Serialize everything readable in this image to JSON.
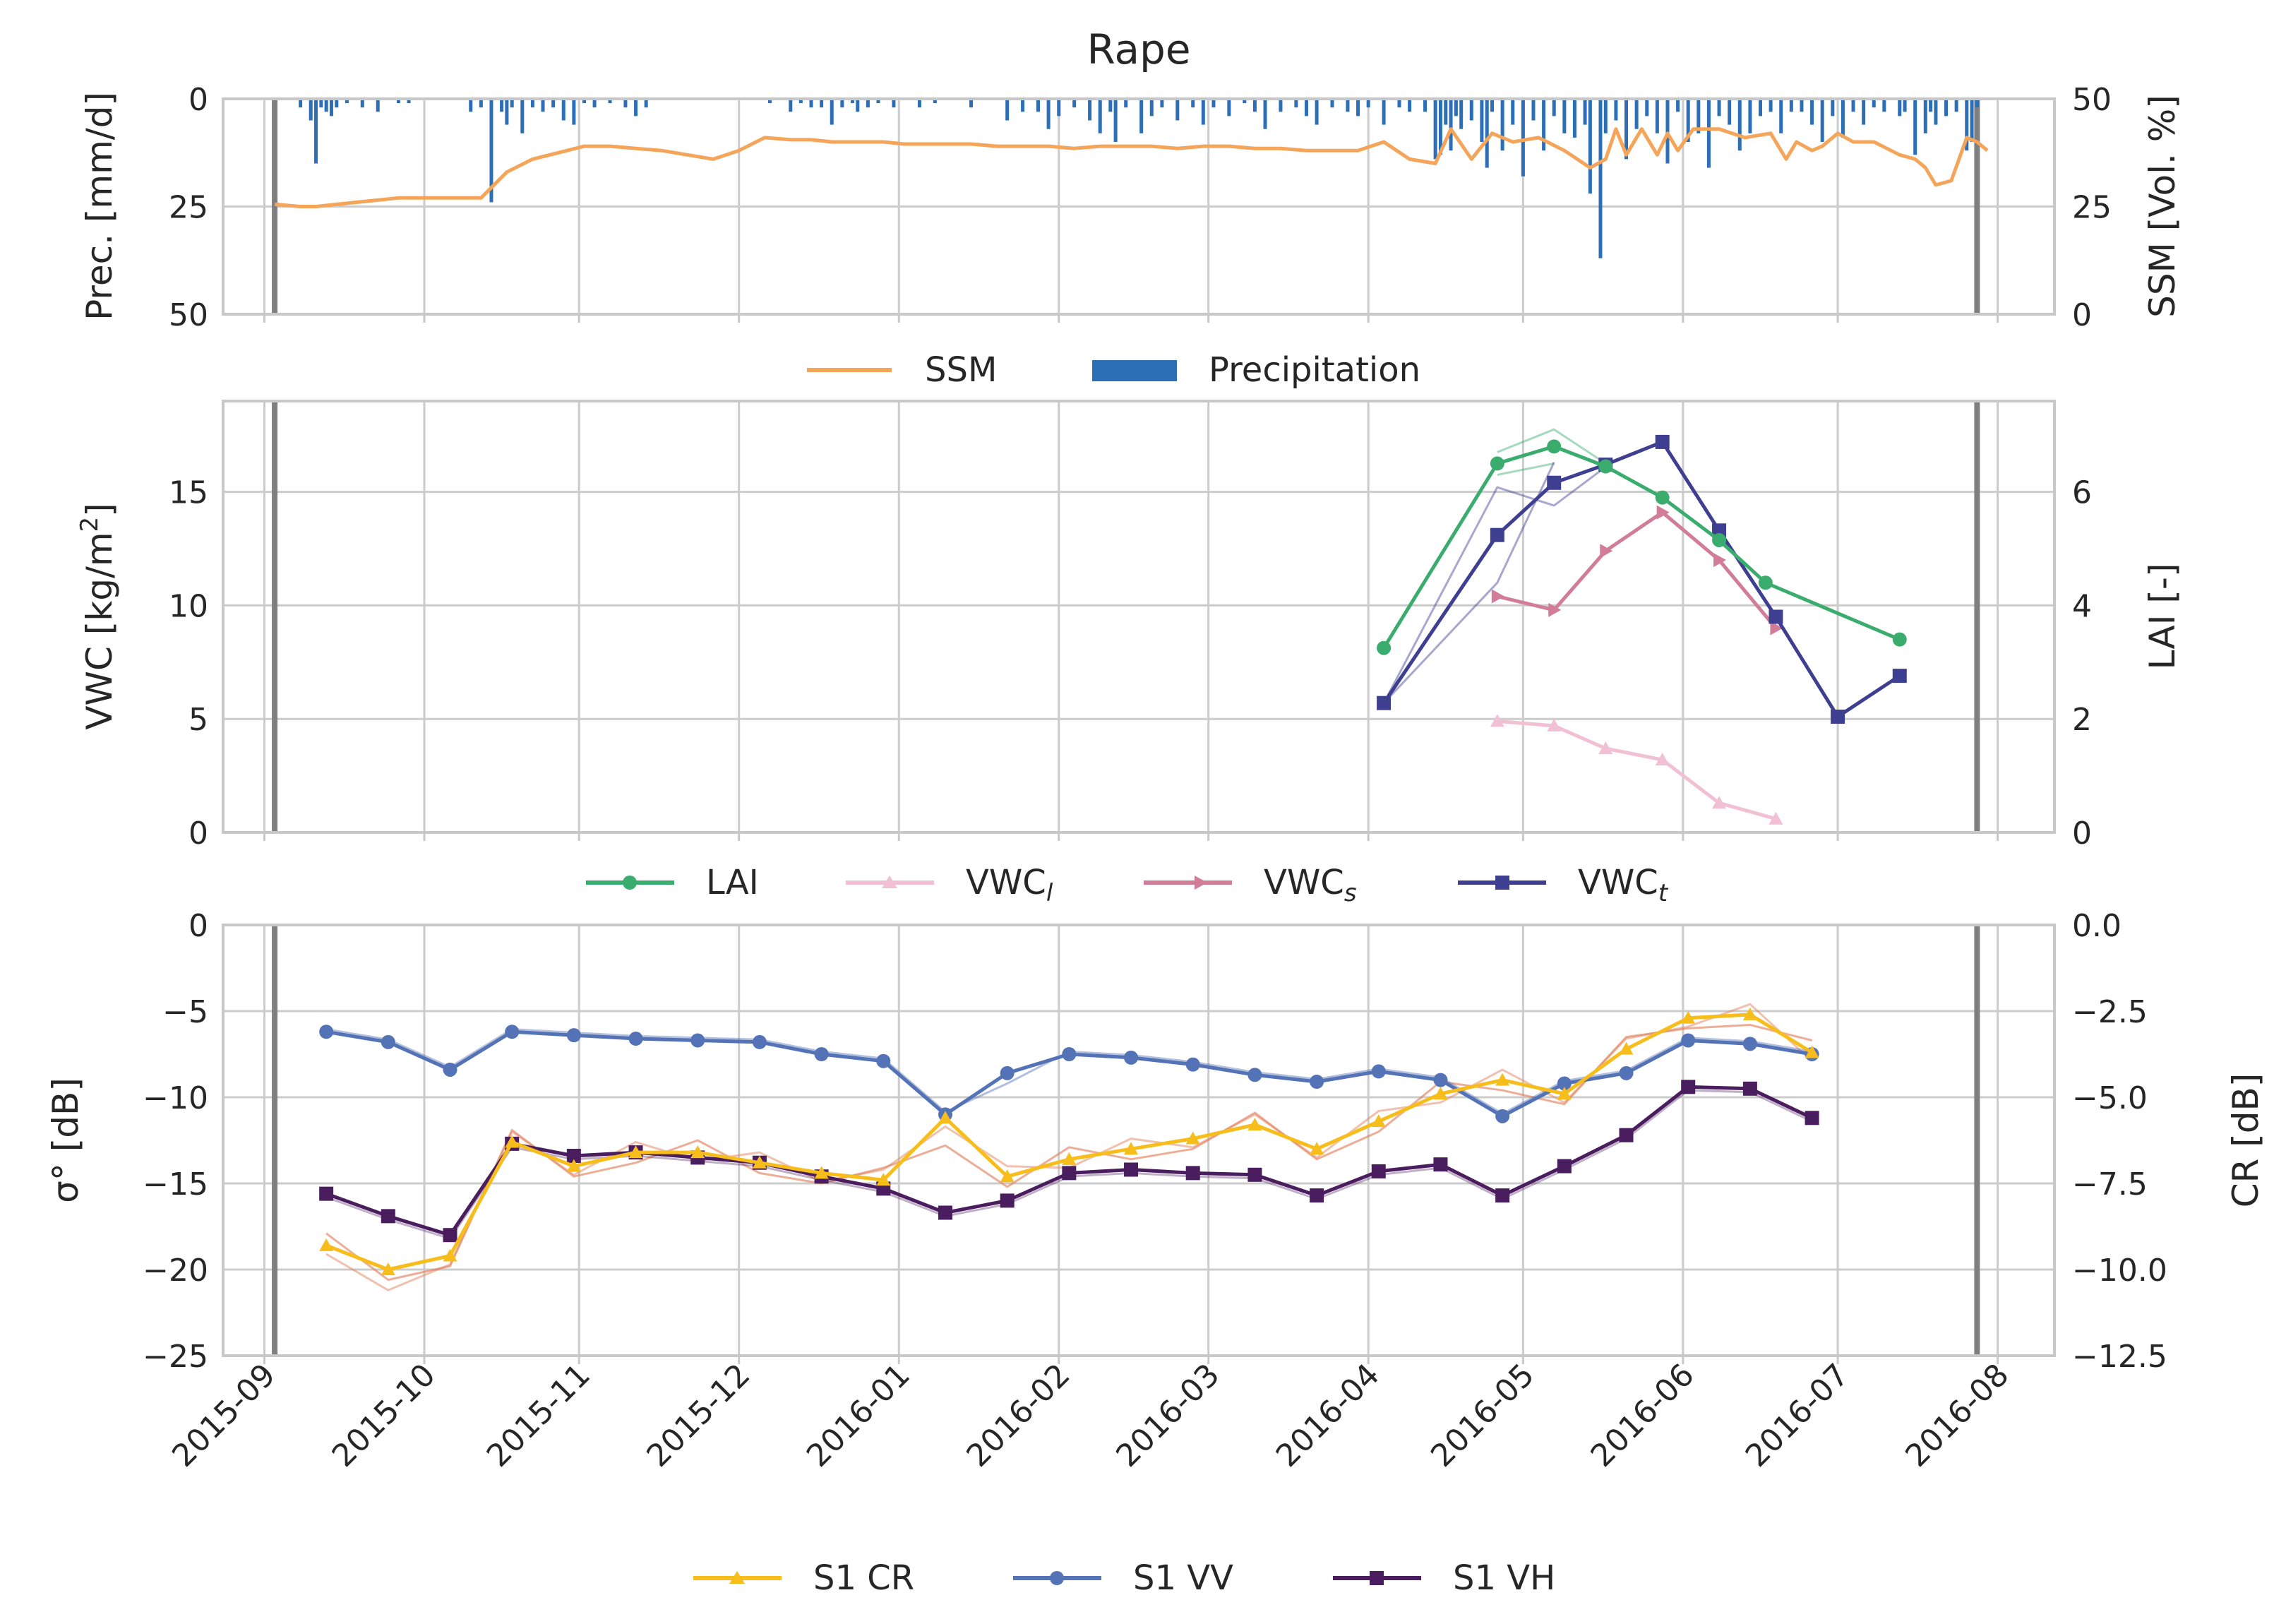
{
  "chart_data": [
    {
      "type": "line",
      "title": "Rape",
      "ylabel": "Prec. [mm/d]",
      "ylabel_right": "SSM [Vol. %]",
      "ylim": [
        50,
        0
      ],
      "ylim_right": [
        0,
        50
      ],
      "yticks": [
        "0",
        "25",
        "50"
      ],
      "yticks_right": [
        "50",
        "25",
        "0"
      ],
      "x_range_days": [
        -10,
        345
      ],
      "vertical_markers_days": [
        0,
        330
      ],
      "legend": [
        "SSM",
        "Precipitation"
      ],
      "colors": {
        "ssm": "#f5a55a",
        "precip": "#2c6fb6"
      },
      "ssm": {
        "x": [
          0,
          5,
          8,
          12,
          16,
          20,
          24,
          28,
          32,
          36,
          40,
          45,
          50,
          55,
          60,
          65,
          70,
          75,
          80,
          85,
          90,
          95,
          100,
          104,
          108,
          112,
          115,
          118,
          122,
          126,
          130,
          135,
          140,
          145,
          150,
          155,
          160,
          165,
          170,
          175,
          180,
          185,
          190,
          195,
          200,
          205,
          210,
          215,
          220,
          225,
          228,
          232,
          236,
          240,
          245,
          250,
          255,
          258,
          260,
          262,
          265,
          268,
          270,
          272,
          275,
          280,
          285,
          290,
          293,
          295,
          298,
          300,
          303,
          306,
          310,
          315,
          318,
          320,
          322,
          325,
          328,
          330,
          332
        ],
        "values": [
          25.5,
          25,
          25,
          25.5,
          26,
          26.5,
          27,
          27,
          27,
          27,
          27,
          33,
          36,
          37.5,
          39,
          39,
          38.5,
          38,
          37,
          36,
          38,
          41,
          40.5,
          40.5,
          40,
          40,
          40,
          40,
          39.5,
          39.5,
          39.5,
          39.5,
          39,
          39,
          39,
          38.5,
          39,
          39,
          39,
          38.5,
          39,
          39,
          38.5,
          38.5,
          38,
          38,
          38,
          40,
          36,
          35,
          43,
          36,
          42,
          40,
          41,
          38,
          34,
          36,
          43,
          37,
          43,
          37,
          42,
          38,
          43,
          43,
          41,
          42,
          36,
          40,
          38,
          39,
          42,
          40,
          40,
          37,
          36,
          34,
          30,
          31,
          41,
          40,
          38
        ]
      },
      "precipitation": {
        "x": [
          5,
          7,
          8,
          9,
          10,
          11,
          12,
          14,
          17,
          20,
          24,
          26,
          38,
          40,
          42,
          44,
          45,
          46,
          48,
          50,
          52,
          54,
          56,
          58,
          60,
          62,
          65,
          68,
          70,
          72,
          96,
          100,
          102,
          104,
          106,
          108,
          110,
          112,
          113,
          115,
          117,
          120,
          125,
          128,
          135,
          142,
          145,
          148,
          150,
          152,
          155,
          158,
          160,
          162,
          163,
          165,
          168,
          170,
          172,
          175,
          178,
          180,
          182,
          185,
          188,
          190,
          192,
          195,
          198,
          200,
          202,
          205,
          208,
          210,
          212,
          215,
          218,
          220,
          223,
          225,
          226,
          227,
          228,
          229,
          230,
          232,
          234,
          235,
          236,
          238,
          240,
          242,
          244,
          246,
          248,
          250,
          252,
          254,
          255,
          257,
          258,
          260,
          262,
          264,
          266,
          268,
          270,
          272,
          274,
          276,
          278,
          280,
          282,
          284,
          286,
          288,
          290,
          292,
          294,
          296,
          298,
          300,
          302,
          304,
          306,
          308,
          310,
          312,
          315,
          316,
          318,
          320,
          321,
          322,
          324,
          326,
          328,
          329,
          330
        ],
        "values": [
          2,
          5,
          15,
          2,
          3,
          4,
          2,
          1,
          2,
          3,
          1,
          1,
          3,
          2,
          24,
          3,
          6,
          2,
          8,
          2,
          3,
          2,
          5,
          6,
          1,
          2,
          1,
          2,
          4,
          2,
          1,
          3,
          1,
          2,
          2,
          6,
          2,
          1,
          3,
          2,
          1,
          2,
          2,
          1,
          2,
          5,
          3,
          3,
          7,
          4,
          2,
          5,
          8,
          3,
          10,
          2,
          8,
          4,
          2,
          5,
          2,
          6,
          2,
          4,
          1,
          3,
          7,
          3,
          2,
          4,
          6,
          2,
          3,
          4,
          2,
          6,
          2,
          3,
          3,
          14,
          13,
          6,
          12,
          4,
          7,
          5,
          10,
          16,
          3,
          12,
          6,
          18,
          5,
          12,
          4,
          8,
          9,
          6,
          22,
          37,
          8,
          5,
          14,
          7,
          4,
          8,
          15,
          3,
          10,
          8,
          16,
          4,
          6,
          12,
          8,
          4,
          3,
          8,
          3,
          3,
          6,
          10,
          4,
          9,
          3,
          6,
          2,
          3,
          4,
          3,
          13,
          8,
          3,
          6,
          4,
          3,
          12,
          10,
          2
        ]
      }
    },
    {
      "type": "line",
      "ylabel": "VWC [kg/m²]",
      "ylabel_right": "LAI [-]",
      "ylim": [
        0,
        19
      ],
      "ylim_right": [
        0,
        7.6
      ],
      "yticks": [
        "0",
        "5",
        "10",
        "15"
      ],
      "yticks_right": [
        "0",
        "2",
        "4",
        "6"
      ],
      "legend": [
        "LAI",
        "VWC",
        "VWC",
        "VWC"
      ],
      "legend_sub": [
        "",
        "l",
        "s",
        "t"
      ],
      "colors": {
        "lai": "#3aad6e",
        "vwcl": "#f1c0d2",
        "vwcs": "#d17d98",
        "vwct": "#3f3f92"
      },
      "lai": {
        "x": [
          215,
          237,
          248,
          258,
          269,
          280,
          289,
          315
        ],
        "values": [
          3.25,
          6.5,
          6.8,
          6.45,
          5.9,
          5.15,
          4.4,
          3.4
        ]
      },
      "vwc_l": {
        "x": [
          237,
          248,
          258,
          269,
          280,
          291
        ],
        "values": [
          4.9,
          4.7,
          3.7,
          3.2,
          1.3,
          0.6
        ]
      },
      "vwc_s": {
        "x": [
          237,
          248,
          258,
          269,
          280,
          291
        ],
        "values": [
          10.4,
          9.8,
          12.4,
          14.1,
          12.0,
          9.0
        ]
      },
      "vwc_t": {
        "x": [
          215,
          237,
          248,
          258,
          269,
          280,
          291,
          303,
          315
        ],
        "values": [
          5.7,
          13.1,
          15.4,
          16.2,
          17.2,
          13.3,
          9.5,
          5.1,
          6.9
        ]
      }
    },
    {
      "type": "line",
      "ylabel": "σ° [dB]",
      "ylabel_right": "CR [dB]",
      "ylim": [
        -25,
        0
      ],
      "ylim_right": [
        -12.5,
        0
      ],
      "yticks": [
        "−25",
        "−20",
        "−15",
        "−10",
        "−5",
        "0"
      ],
      "yticks_right": [
        "−12.5",
        "−10.0",
        "−7.5",
        "−5.0",
        "−2.5",
        "0.0"
      ],
      "xticks": [
        "2015-09",
        "2015-10",
        "2015-11",
        "2015-12",
        "2016-01",
        "2016-02",
        "2016-03",
        "2016-04",
        "2016-05",
        "2016-06",
        "2016-07",
        "2016-08"
      ],
      "xticks_days": [
        -2,
        29,
        59,
        90,
        121,
        152,
        181,
        212,
        242,
        273,
        303,
        334
      ],
      "legend": [
        "S1 CR",
        "S1 VV",
        "S1 VH"
      ],
      "colors": {
        "cr": "#f7bd1b",
        "vv": "#5472b6",
        "vh": "#4a1d5e"
      },
      "x": [
        10,
        22,
        34,
        46,
        58,
        70,
        82,
        94,
        106,
        118,
        130,
        142,
        154,
        166,
        178,
        190,
        202,
        214,
        226,
        238,
        250,
        262,
        274,
        286,
        298
      ],
      "vv": [
        -6.2,
        -6.8,
        -8.4,
        -6.2,
        -6.4,
        -6.6,
        -6.7,
        -6.8,
        -7.5,
        -7.9,
        -11.0,
        -8.6,
        -7.5,
        -7.7,
        -8.1,
        -8.7,
        -9.1,
        -8.5,
        -9.0,
        -11.1,
        -9.2,
        -8.6,
        -6.7,
        -6.9,
        -7.5
      ],
      "vh": [
        -15.6,
        -16.9,
        -18.0,
        -12.7,
        -13.4,
        -13.2,
        -13.5,
        -13.8,
        -14.6,
        -15.3,
        -16.7,
        -16.0,
        -14.4,
        -14.2,
        -14.4,
        -14.5,
        -15.7,
        -14.3,
        -13.9,
        -15.7,
        -14.0,
        -12.2,
        -9.4,
        -9.5,
        -11.2
      ],
      "cr": [
        -9.3,
        -10.0,
        -9.6,
        -6.3,
        -7.0,
        -6.6,
        -6.6,
        -6.9,
        -7.2,
        -7.4,
        -5.6,
        -7.3,
        -6.8,
        -6.5,
        -6.2,
        -5.8,
        -6.5,
        -5.7,
        -4.9,
        -4.5,
        -4.9,
        -3.6,
        -2.7,
        -2.6,
        -3.7
      ]
    }
  ]
}
